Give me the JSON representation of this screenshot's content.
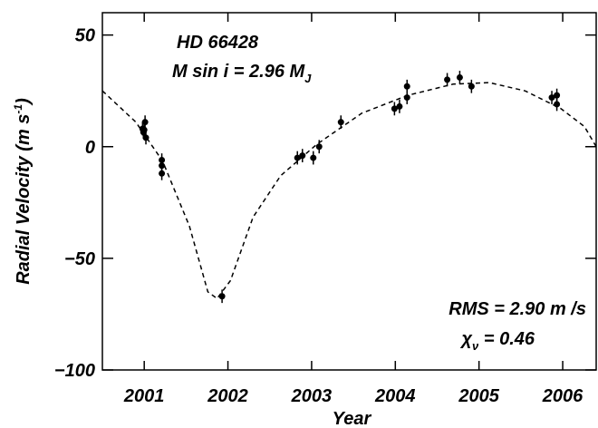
{
  "chart_data": {
    "type": "scatter",
    "annotations": [
      {
        "parts": [
          "HD 66428"
        ]
      },
      {
        "parts": [
          "M sin i = 2.96 M",
          "J"
        ]
      },
      {
        "parts": [
          "RMS = 2.90 m /s"
        ]
      },
      {
        "parts": [
          "χ",
          "ν",
          " = 0.46"
        ]
      }
    ],
    "x_label": "Year",
    "y_label": {
      "parts": [
        "Radial Velocity  (m s",
        "-1",
        ")"
      ]
    },
    "xlim": [
      2000.5,
      2006.4
    ],
    "ylim": [
      -100,
      60
    ],
    "xticks": [
      2001,
      2002,
      2003,
      2004,
      2005,
      2006
    ],
    "yticks": [
      {
        "value": -100,
        "label": "−100"
      },
      {
        "value": -50,
        "label": "−50"
      },
      0,
      50
    ],
    "series": [
      {
        "style": "points",
        "color": "#000000",
        "x": [
          2000.98,
          2000.99,
          2001.0,
          2001.01,
          2001.02,
          2001.21,
          2001.21,
          2001.21,
          2001.93,
          2002.83,
          2002.89,
          2003.02,
          2003.09,
          2003.35,
          2003.99,
          2004.05,
          2004.14,
          2004.14,
          2004.62,
          2004.77,
          2004.91,
          2005.87,
          2005.93,
          2005.93
        ],
        "values": [
          8,
          6.5,
          7.5,
          11,
          4,
          -6,
          -8.5,
          -12,
          -67,
          -5,
          -4,
          -5,
          0,
          11,
          17,
          18,
          22,
          27,
          30,
          31,
          27,
          22,
          23,
          19
        ],
        "errors": [
          3,
          3,
          3,
          3,
          3,
          3,
          3,
          3,
          3,
          3,
          3,
          3,
          3,
          3,
          3,
          3,
          3,
          3,
          3,
          3,
          3,
          3,
          3,
          3
        ]
      },
      {
        "style": "dashed",
        "color": "#000000",
        "x": [
          2000.5,
          2000.9,
          2001.22,
          2001.54,
          2001.76,
          2001.87,
          2002.03,
          2002.3,
          2002.63,
          2003.06,
          2003.6,
          2004.15,
          2004.69,
          2005.12,
          2005.55,
          2005.98,
          2006.26,
          2006.4
        ],
        "values": [
          25,
          11,
          -6.5,
          -35.6,
          -65,
          -68,
          -60,
          -31.6,
          -13,
          1,
          15,
          23,
          28,
          28.7,
          25,
          17,
          9,
          0
        ]
      }
    ]
  }
}
